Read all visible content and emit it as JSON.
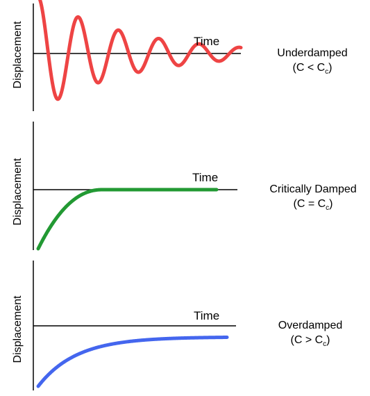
{
  "panels": [
    {
      "key": "underdamped",
      "ylabel": "Displacement",
      "xlabel": "Time",
      "title": "Underdamped",
      "condition": "(C < C",
      "condition_sub": "c",
      "condition_end": ")",
      "color": "#ee4444"
    },
    {
      "key": "critically-damped",
      "ylabel": "Displacement",
      "xlabel": "Time",
      "title": "Critically Damped",
      "condition": "(C = C",
      "condition_sub": "c",
      "condition_end": ")",
      "color": "#229933"
    },
    {
      "key": "overdamped",
      "ylabel": "Displacement",
      "xlabel": "Time",
      "title": "Overdamped",
      "condition": "(C > C",
      "condition_sub": "c",
      "condition_end": ")",
      "color": "#4466ee"
    }
  ]
}
